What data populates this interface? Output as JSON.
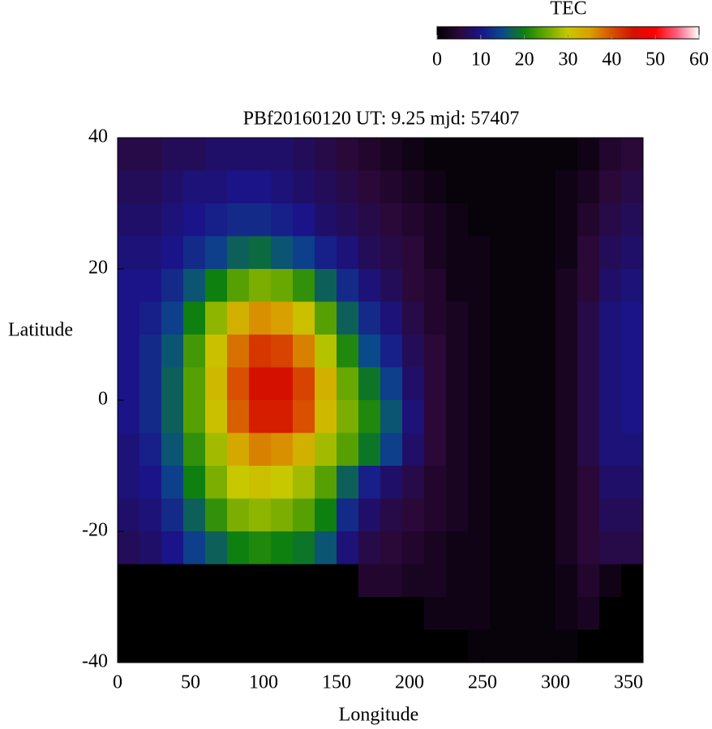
{
  "chart_data": {
    "type": "heatmap",
    "title": "PBf20160120  UT: 9.25  mjd: 57407",
    "x_label": "Longitude",
    "y_label": "Latitude",
    "colorbar_label": "TEC",
    "x": [
      7.5,
      22.5,
      37.5,
      52.5,
      67.5,
      82.5,
      97.5,
      112.5,
      127.5,
      142.5,
      157.5,
      172.5,
      187.5,
      202.5,
      217.5,
      232.5,
      247.5,
      262.5,
      277.5,
      292.5,
      307.5,
      322.5,
      337.5,
      352.5
    ],
    "y": [
      37.5,
      32.5,
      27.5,
      22.5,
      17.5,
      12.5,
      7.5,
      2.5,
      -2.5,
      -7.5,
      -12.5,
      -17.5,
      -22.5,
      -27.5,
      -32.5,
      -37.5
    ],
    "z": [
      [
        6,
        6,
        7,
        7,
        8,
        8,
        8,
        8,
        7,
        6,
        5,
        4,
        3,
        2,
        1,
        1,
        1,
        1,
        1,
        1,
        1,
        2,
        4,
        5
      ],
      [
        7,
        7,
        8,
        9,
        9,
        10,
        10,
        9,
        8,
        7,
        6,
        5,
        4,
        3,
        2,
        1,
        1,
        1,
        1,
        1,
        2,
        3,
        5,
        6
      ],
      [
        8,
        8,
        9,
        10,
        11,
        12,
        12,
        11,
        10,
        8,
        7,
        6,
        5,
        4,
        3,
        2,
        1,
        1,
        1,
        1,
        2,
        4,
        6,
        7
      ],
      [
        9,
        9,
        10,
        12,
        14,
        17,
        18,
        16,
        14,
        11,
        9,
        7,
        6,
        5,
        3,
        2,
        2,
        1,
        1,
        1,
        2,
        5,
        7,
        8
      ],
      [
        10,
        10,
        12,
        16,
        20,
        24,
        26,
        25,
        22,
        17,
        12,
        9,
        7,
        5,
        4,
        2,
        2,
        1,
        1,
        1,
        3,
        5,
        8,
        9
      ],
      [
        10,
        11,
        14,
        20,
        27,
        33,
        36,
        35,
        31,
        24,
        17,
        12,
        9,
        6,
        4,
        3,
        2,
        1,
        1,
        1,
        3,
        6,
        9,
        10
      ],
      [
        10,
        12,
        16,
        23,
        31,
        38,
        42,
        41,
        37,
        29,
        21,
        15,
        11,
        7,
        5,
        3,
        2,
        1,
        1,
        1,
        3,
        6,
        9,
        10
      ],
      [
        10,
        12,
        17,
        24,
        32,
        40,
        45,
        45,
        41,
        33,
        25,
        19,
        14,
        8,
        5,
        3,
        2,
        1,
        1,
        1,
        3,
        6,
        9,
        10
      ],
      [
        10,
        12,
        17,
        24,
        31,
        39,
        44,
        44,
        40,
        32,
        26,
        21,
        16,
        9,
        5,
        3,
        2,
        1,
        1,
        1,
        3,
        6,
        9,
        10
      ],
      [
        9,
        11,
        16,
        22,
        28,
        34,
        37,
        36,
        33,
        28,
        24,
        19,
        14,
        8,
        5,
        3,
        2,
        1,
        1,
        1,
        3,
        6,
        9,
        9
      ],
      [
        9,
        10,
        14,
        20,
        26,
        30,
        31,
        30,
        28,
        24,
        17,
        11,
        8,
        6,
        4,
        3,
        2,
        1,
        1,
        1,
        3,
        5,
        8,
        8
      ],
      [
        8,
        9,
        12,
        17,
        22,
        26,
        27,
        26,
        24,
        20,
        12,
        8,
        6,
        5,
        4,
        3,
        2,
        1,
        1,
        1,
        3,
        5,
        7,
        7
      ],
      [
        7,
        8,
        10,
        14,
        17,
        20,
        21,
        20,
        19,
        16,
        9,
        6,
        5,
        4,
        3,
        2,
        2,
        1,
        1,
        1,
        3,
        5,
        6,
        6
      ],
      [
        0,
        0,
        0,
        0,
        0,
        0,
        0,
        0,
        0,
        0,
        0,
        4,
        4,
        3,
        3,
        2,
        2,
        1,
        1,
        1,
        2,
        4,
        2,
        0
      ],
      [
        0,
        0,
        0,
        0,
        0,
        0,
        0,
        0,
        0,
        0,
        0,
        0,
        0,
        0,
        2,
        2,
        2,
        1,
        1,
        1,
        2,
        3,
        0,
        0
      ],
      [
        0,
        0,
        0,
        0,
        0,
        0,
        0,
        0,
        0,
        0,
        0,
        0,
        0,
        0,
        0,
        0,
        1,
        1,
        1,
        1,
        1,
        0,
        0,
        0
      ]
    ],
    "xlim": [
      0,
      360
    ],
    "xticks": [
      0,
      50,
      100,
      150,
      200,
      250,
      300,
      350
    ],
    "ylim": [
      -40,
      40
    ],
    "yticks": [
      40,
      20,
      0,
      -20,
      -40
    ],
    "zlim": [
      0,
      60
    ],
    "zticks": [
      0,
      10,
      20,
      30,
      40,
      50,
      60
    ],
    "colors": [
      "#000000",
      "#2a0838",
      "#1a1488",
      "#0a4a8a",
      "#0e8010",
      "#68a800",
      "#c8c800",
      "#d8a000",
      "#d85000",
      "#d41000",
      "#ff0000",
      "#ff6080",
      "#ffffff"
    ]
  }
}
